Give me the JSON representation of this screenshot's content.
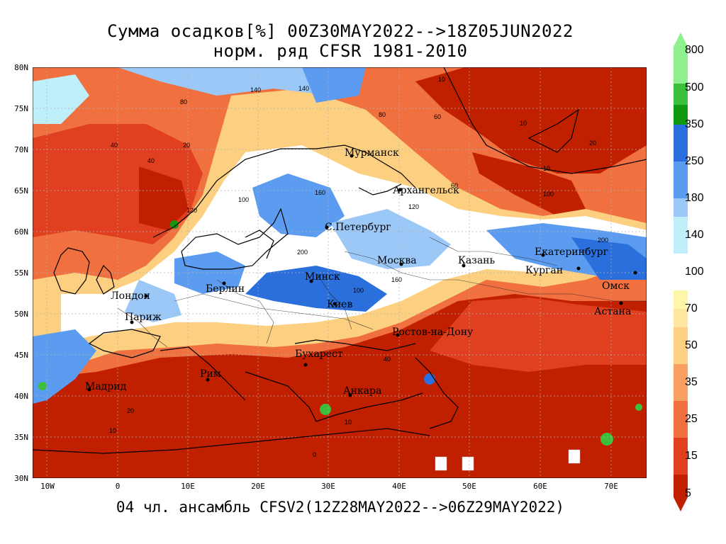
{
  "title_line1": "Сумма осадков[%] 00Z30MAY2022-->18Z05JUN2022",
  "title_line2": "норм. ряд CFSR 1981-2010",
  "footer": "04 чл. ансамбль CFSV2(12Z28MAY2022-->06Z29MAY2022)",
  "lat_labels": [
    "80N",
    "75N",
    "70N",
    "65N",
    "60N",
    "55N",
    "50N",
    "45N",
    "40N",
    "35N",
    "30N"
  ],
  "lon_labels": [
    "10W",
    "0",
    "10E",
    "20E",
    "30E",
    "40E",
    "50E",
    "60E",
    "70E"
  ],
  "colorbar": {
    "labels": [
      "800",
      "500",
      "350",
      "250",
      "180",
      "140",
      "100",
      "70",
      "50",
      "35",
      "25",
      "15",
      "5"
    ],
    "colors": {
      "800": "#8ef08e",
      "500": "#3cc03c",
      "350": "#119911",
      "250": "#2a6fdc",
      "180": "#5b9cf0",
      "140": "#9cc8f8",
      "100": "#bfeff8",
      "70": "#fff7a8",
      "50": "#fcd080",
      "35": "#f8a060",
      "25": "#f07040",
      "15": "#e04020",
      "5": "#c02000"
    }
  },
  "cities": [
    {
      "name": "Мурманск"
    },
    {
      "name": "Архангельск"
    },
    {
      "name": "С.Петербург"
    },
    {
      "name": "Екатеринбург"
    },
    {
      "name": "Москва"
    },
    {
      "name": "Казань"
    },
    {
      "name": "Курган"
    },
    {
      "name": "Минск"
    },
    {
      "name": "Омск"
    },
    {
      "name": "Берлин"
    },
    {
      "name": "Лондон"
    },
    {
      "name": "Париж"
    },
    {
      "name": "Киев"
    },
    {
      "name": "Астана"
    },
    {
      "name": "Ростов-на-Дону"
    },
    {
      "name": "Бухарест"
    },
    {
      "name": "Рим"
    },
    {
      "name": "Мадрид"
    },
    {
      "name": "Анкара"
    }
  ],
  "contour_labels": [
    "10",
    "20",
    "40",
    "60",
    "80",
    "100",
    "120",
    "140",
    "160",
    "200",
    "0"
  ]
}
